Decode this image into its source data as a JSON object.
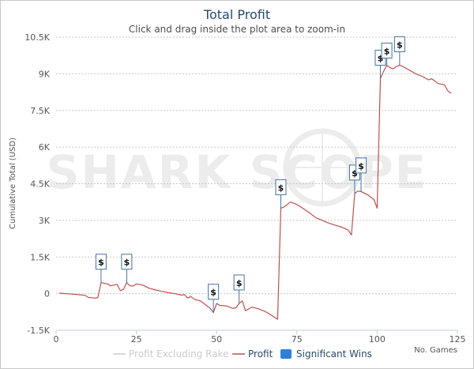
{
  "watermark": "SHARK SCOPE",
  "chart_data": {
    "type": "line",
    "title": "Total Profit",
    "subtitle": "Click and drag inside the plot area to zoom-in",
    "ylabel": "Cumulative Total (USD)",
    "xlabel": "No. Games",
    "xlim": [
      0,
      125
    ],
    "ylim": [
      -1500,
      10500
    ],
    "x_ticks": [
      "0",
      "25",
      "50",
      "75",
      "100",
      "125"
    ],
    "y_ticks": [
      "-1.5K",
      "0",
      "1.5K",
      "3K",
      "4.5K",
      "6K",
      "7.5K",
      "9K",
      "10.5K"
    ],
    "x_tick_values": [
      0,
      25,
      50,
      75,
      100,
      125
    ],
    "y_tick_values": [
      -1500,
      0,
      1500,
      3000,
      4500,
      6000,
      7500,
      9000,
      10500
    ],
    "grid": true,
    "legend_position": "bottom",
    "colors": {
      "profit": "#c0504d",
      "profit_excluding_rake": "#cccccc",
      "significant_wins": "#2f7ed8"
    },
    "series": [
      {
        "name": "Profit",
        "color": "#c0504d",
        "points": [
          [
            1,
            20
          ],
          [
            3,
            0
          ],
          [
            5,
            -20
          ],
          [
            7,
            -40
          ],
          [
            9,
            -70
          ],
          [
            10,
            -150
          ],
          [
            12,
            -180
          ],
          [
            13,
            -170
          ],
          [
            14,
            450
          ],
          [
            15,
            420
          ],
          [
            16,
            400
          ],
          [
            17,
            320
          ],
          [
            19,
            380
          ],
          [
            20,
            120
          ],
          [
            21,
            180
          ],
          [
            22,
            450
          ],
          [
            23,
            320
          ],
          [
            24,
            310
          ],
          [
            25,
            400
          ],
          [
            27,
            350
          ],
          [
            29,
            220
          ],
          [
            31,
            150
          ],
          [
            33,
            90
          ],
          [
            35,
            40
          ],
          [
            37,
            0
          ],
          [
            39,
            -60
          ],
          [
            40,
            -40
          ],
          [
            41,
            -180
          ],
          [
            42,
            -120
          ],
          [
            43,
            -230
          ],
          [
            45,
            -300
          ],
          [
            47,
            -500
          ],
          [
            48,
            -600
          ],
          [
            49,
            -780
          ],
          [
            50,
            -400
          ],
          [
            51,
            -480
          ],
          [
            53,
            -500
          ],
          [
            55,
            -600
          ],
          [
            56,
            -580
          ],
          [
            57,
            -400
          ],
          [
            58,
            -300
          ],
          [
            59,
            -700
          ],
          [
            61,
            -550
          ],
          [
            63,
            -620
          ],
          [
            65,
            -720
          ],
          [
            67,
            -880
          ],
          [
            69,
            -1050
          ],
          [
            70,
            3500
          ],
          [
            71,
            3550
          ],
          [
            72,
            3650
          ],
          [
            73,
            3750
          ],
          [
            75,
            3650
          ],
          [
            77,
            3480
          ],
          [
            79,
            3300
          ],
          [
            81,
            3100
          ],
          [
            83,
            3000
          ],
          [
            85,
            2880
          ],
          [
            87,
            2800
          ],
          [
            89,
            2720
          ],
          [
            91,
            2600
          ],
          [
            92,
            2400
          ],
          [
            93,
            4100
          ],
          [
            94,
            4200
          ],
          [
            95,
            4180
          ],
          [
            97,
            4050
          ],
          [
            99,
            3850
          ],
          [
            100,
            3500
          ],
          [
            101,
            8800
          ],
          [
            102,
            9100
          ],
          [
            103,
            9350
          ],
          [
            104,
            9250
          ],
          [
            105,
            9200
          ],
          [
            106,
            9300
          ],
          [
            107,
            9350
          ],
          [
            108,
            9300
          ],
          [
            110,
            9150
          ],
          [
            112,
            9000
          ],
          [
            114,
            8900
          ],
          [
            116,
            8750
          ],
          [
            117,
            8800
          ],
          [
            119,
            8600
          ],
          [
            121,
            8550
          ],
          [
            122,
            8300
          ],
          [
            123,
            8200
          ]
        ]
      },
      {
        "name": "Profit Excluding Rake",
        "color": "#cccccc",
        "points": []
      }
    ],
    "significant_wins": [
      {
        "x": 14,
        "y": 450,
        "label": "$"
      },
      {
        "x": 22,
        "y": 450,
        "label": "$"
      },
      {
        "x": 49,
        "y": -780,
        "label": "$"
      },
      {
        "x": 57,
        "y": -400,
        "label": "$"
      },
      {
        "x": 70,
        "y": 3500,
        "label": "$"
      },
      {
        "x": 93,
        "y": 4100,
        "label": "$"
      },
      {
        "x": 95,
        "y": 4180,
        "label": "$"
      },
      {
        "x": 101,
        "y": 8800,
        "label": "$"
      },
      {
        "x": 103,
        "y": 9350,
        "label": "$"
      },
      {
        "x": 107,
        "y": 9350,
        "label": "$"
      }
    ],
    "legend": [
      {
        "name": "Profit Excluding Rake",
        "color": "#cccccc",
        "text_color": "#cccccc",
        "symbol": "line"
      },
      {
        "name": "Profit",
        "color": "#c0504d",
        "text_color": "#274b6d",
        "symbol": "line"
      },
      {
        "name": "Significant Wins",
        "color": "#2f7ed8",
        "text_color": "#274b6d",
        "symbol": "box"
      }
    ]
  }
}
